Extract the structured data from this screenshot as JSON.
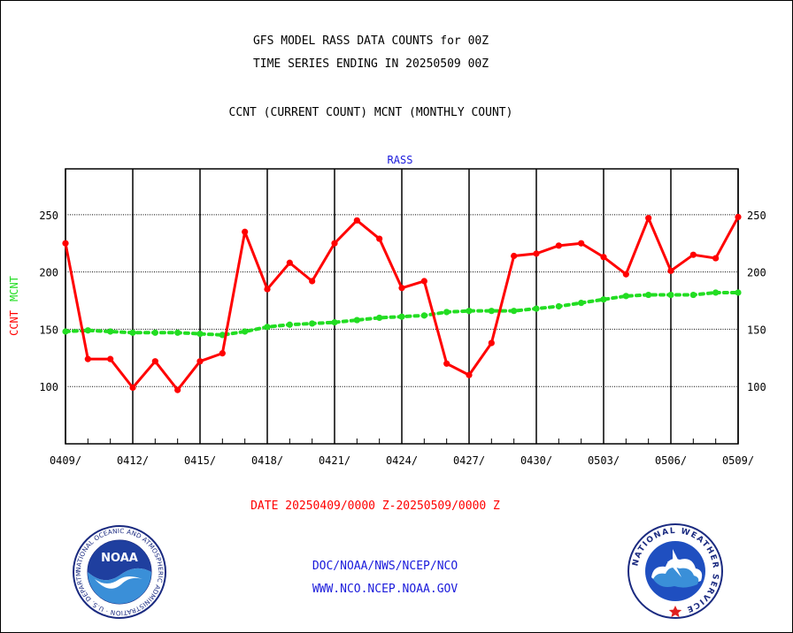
{
  "header": {
    "title": "GFS MODEL RASS DATA COUNTS for 00Z",
    "subtitle": "TIME SERIES ENDING IN 20250509 00Z",
    "counts_title": "CCNT (CURRENT COUNT) MCNT (MONTHLY COUNT)"
  },
  "chart_data": {
    "type": "line",
    "panel_label": "RASS",
    "ylabel_left": "CCNT",
    "ylabel_right": "MCNT",
    "xlabel": "DATE 20250409/0000 Z-20250509/0000 Z",
    "ylim": [
      50,
      290
    ],
    "yticks": [
      100,
      150,
      200,
      250
    ],
    "x_ticklabels": [
      "0409/",
      "0412/",
      "0415/",
      "0418/",
      "0421/",
      "0424/",
      "0427/",
      "0430/",
      "0503/",
      "0506/",
      "0509/"
    ],
    "x_day_offsets": [
      0,
      3,
      6,
      9,
      12,
      15,
      18,
      21,
      24,
      27,
      30
    ],
    "grid": true,
    "series": [
      {
        "name": "CCNT",
        "color": "#ff0000",
        "style": "solid",
        "x": [
          0,
          1,
          2,
          3,
          4,
          5,
          6,
          7,
          8,
          9,
          10,
          11,
          12,
          13,
          14,
          15,
          16,
          17,
          18,
          19,
          20,
          21,
          22,
          23,
          24,
          25,
          26,
          27,
          28,
          29,
          30
        ],
        "values": [
          225,
          124,
          124,
          99,
          122,
          97,
          122,
          129,
          235,
          185,
          208,
          192,
          225,
          245,
          229,
          186,
          192,
          120,
          110,
          138,
          214,
          216,
          223,
          225,
          213,
          198,
          247,
          201,
          215,
          212,
          248
        ]
      },
      {
        "name": "MCNT",
        "color": "#22dd22",
        "style": "dotted",
        "x": [
          0,
          1,
          2,
          3,
          4,
          5,
          6,
          7,
          8,
          9,
          10,
          11,
          12,
          13,
          14,
          15,
          16,
          17,
          18,
          19,
          20,
          21,
          22,
          23,
          24,
          25,
          26,
          27,
          28,
          29,
          30
        ],
        "values": [
          148,
          149,
          148,
          147,
          147,
          147,
          146,
          145,
          148,
          152,
          154,
          155,
          156,
          158,
          160,
          161,
          162,
          165,
          166,
          166,
          166,
          168,
          170,
          173,
          176,
          179,
          180,
          180,
          180,
          182,
          182
        ]
      }
    ]
  },
  "footer": {
    "credit_line_1": "DOC/NOAA/NWS/NCEP/NCO",
    "credit_line_2": "WWW.NCO.NCEP.NOAA.GOV",
    "noaa_logo_text": "NOAA",
    "noaa_seal_text": "NATIONAL OCEANIC AND ATMOSPHERIC ADMINISTRATION · U.S. DEPARTMENT OF COMMERCE",
    "nws_seal_text": "NATIONAL WEATHER SERVICE"
  }
}
